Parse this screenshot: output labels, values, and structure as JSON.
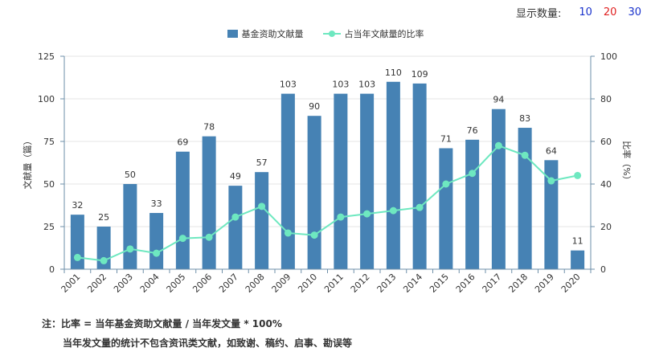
{
  "controls": {
    "label": "显示数量:",
    "options": [
      {
        "text": "10",
        "color": "#1a33cc"
      },
      {
        "text": "20",
        "color": "#e02020"
      },
      {
        "text": "30",
        "color": "#1a33cc"
      }
    ]
  },
  "chart_data": {
    "type": "bar",
    "title": "",
    "categories": [
      "2001",
      "2002",
      "2003",
      "2004",
      "2005",
      "2006",
      "2007",
      "2008",
      "2009",
      "2010",
      "2011",
      "2012",
      "2013",
      "2014",
      "2015",
      "2016",
      "2017",
      "2018",
      "2019",
      "2020"
    ],
    "series": [
      {
        "name": "基金资助文献量",
        "type": "bar",
        "axis": "left",
        "color": "#4682b4",
        "values": [
          32,
          25,
          50,
          33,
          69,
          78,
          49,
          57,
          103,
          90,
          103,
          103,
          110,
          109,
          71,
          76,
          94,
          83,
          64,
          11
        ]
      },
      {
        "name": "占当年文献量的比率",
        "type": "line",
        "axis": "right",
        "color": "#6ee8c0",
        "values": [
          5.5,
          4,
          9.5,
          7.5,
          14.5,
          15,
          24.5,
          29.5,
          17,
          16,
          24.5,
          26,
          27.5,
          29,
          40,
          45,
          58,
          53.5,
          41.5,
          44
        ]
      }
    ],
    "ylabel": "文献量（篇）",
    "ylim": [
      0,
      125
    ],
    "yticks": [
      0,
      25,
      50,
      75,
      100,
      125
    ],
    "y2label": "比率（%）",
    "y2lim": [
      0,
      100
    ],
    "y2ticks": [
      0,
      20,
      40,
      60,
      80,
      100
    ],
    "grid": true,
    "legend": "top-center"
  },
  "notes": {
    "line1": "注：比率 = 当年基金资助文献量 / 当年发文量 * 100%",
    "line2": "当年发文量的统计不包含资讯类文献，如致谢、稿约、启事、勘误等"
  }
}
